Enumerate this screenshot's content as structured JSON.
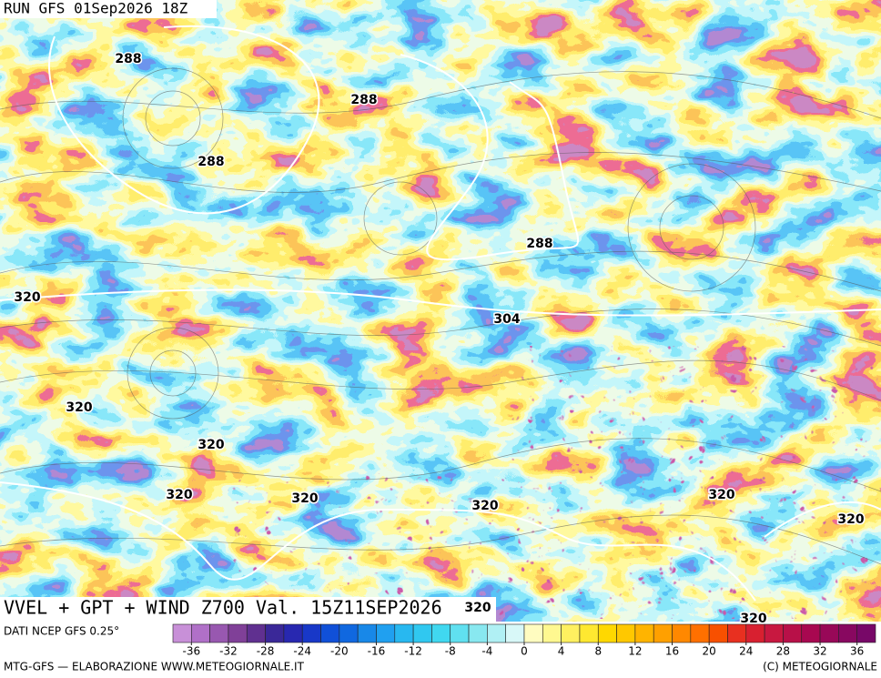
{
  "header": {
    "run": "RUN GFS 01Sep2026 18Z"
  },
  "map": {
    "title": "VVEL + GPT + WIND Z700 Val. 15Z11SEP2026",
    "contour_labels": [
      288,
      288,
      288,
      288,
      320,
      304,
      320,
      320,
      320,
      320,
      320,
      320,
      320,
      320,
      320
    ]
  },
  "colorbar": {
    "source": "DATI NCEP GFS 0.25°",
    "range": [
      -38,
      38
    ],
    "ticks": [
      -36,
      -32,
      -28,
      -24,
      -20,
      -16,
      -12,
      -8,
      -4,
      0,
      4,
      8,
      12,
      16,
      20,
      24,
      28,
      32,
      36
    ],
    "colors": [
      "#c890d8",
      "#b070c8",
      "#9858b0",
      "#804098",
      "#603090",
      "#3a2898",
      "#2828b0",
      "#1838c8",
      "#1050d8",
      "#1068e0",
      "#1888e8",
      "#20a0f0",
      "#28b8f0",
      "#30c8f0",
      "#40d8f0",
      "#60e0f0",
      "#88e8f0",
      "#b0f0f4",
      "#d8f8f8",
      "#fffcc0",
      "#fff890",
      "#fff060",
      "#ffe830",
      "#ffd800",
      "#ffc800",
      "#ffb400",
      "#ffa000",
      "#ff8800",
      "#ff7000",
      "#f85000",
      "#e83020",
      "#d82030",
      "#c81840",
      "#b81048",
      "#a80850",
      "#980858",
      "#880860",
      "#780868"
    ]
  },
  "footer": {
    "left": "MTG-GFS — ELABORAZIONE WWW.METEOGIORNALE.IT",
    "right": "(C) METEOGIORNALE"
  }
}
